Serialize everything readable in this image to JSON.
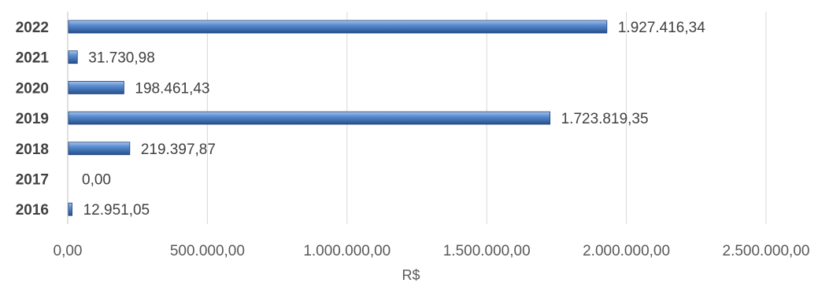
{
  "chart_data": {
    "type": "bar",
    "orientation": "horizontal",
    "categories": [
      "2022",
      "2021",
      "2020",
      "2019",
      "2018",
      "2017",
      "2016"
    ],
    "values": [
      1927416.34,
      31730.98,
      198461.43,
      1723819.35,
      219397.87,
      0,
      12951.05
    ],
    "data_labels": [
      "1.927.416,34",
      "31.730,98",
      "198.461,43",
      "1.723.819,35",
      "219.397,87",
      "0,00",
      "12.951,05"
    ],
    "xlim": [
      0,
      2500000
    ],
    "xticks": [
      0,
      500000,
      1000000,
      1500000,
      2000000,
      2500000
    ],
    "xtick_labels": [
      "0,00",
      "500.000,00",
      "1.000.000,00",
      "1.500.000,00",
      "2.000.000,00",
      "2.500.000,00"
    ],
    "xlabel": "R$",
    "ylabel": "",
    "grid": "vertical",
    "bar_color": "#3f72b5"
  }
}
